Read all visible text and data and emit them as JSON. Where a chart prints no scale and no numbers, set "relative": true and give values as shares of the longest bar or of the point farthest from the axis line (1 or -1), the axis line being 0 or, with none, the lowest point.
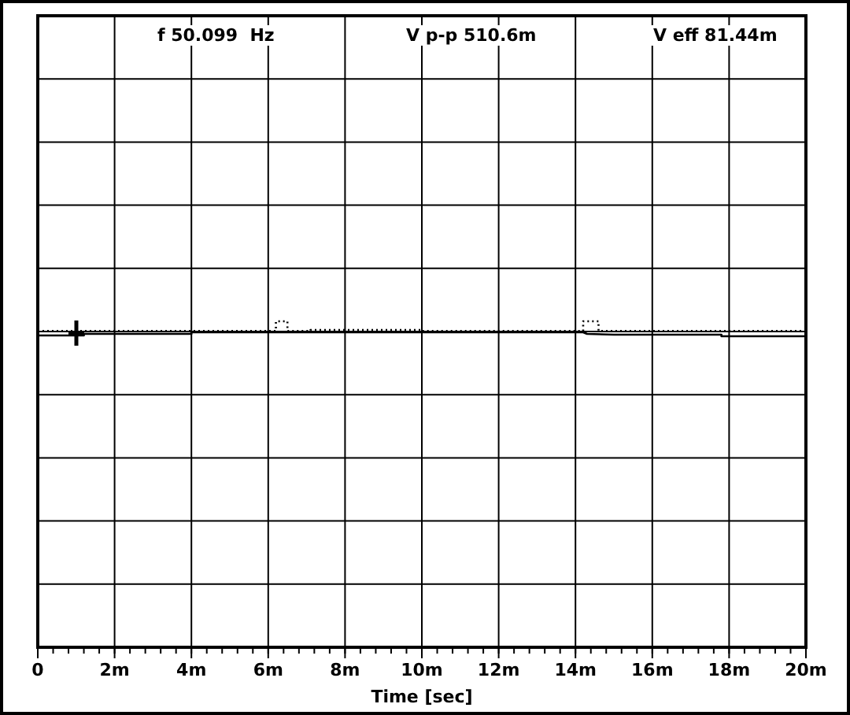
{
  "chart_data": {
    "type": "line",
    "relative": true,
    "xlabel": "Time [sec]",
    "grid": true,
    "marker": "none",
    "annotations": [
      "f 50.099  Hz",
      "V p-p 510.6m",
      "V eff 81.44m"
    ],
    "xlim": [
      0,
      20
    ],
    "xticks": [
      0,
      {
        "value": 2,
        "label": "2m"
      },
      {
        "value": 4,
        "label": "4m"
      },
      {
        "value": 6,
        "label": "6m"
      },
      {
        "value": 8,
        "label": "8m"
      },
      {
        "value": 10,
        "label": "10m"
      },
      {
        "value": 12,
        "label": "12m"
      },
      {
        "value": 14,
        "label": "14m"
      },
      {
        "value": 16,
        "label": "16m"
      },
      {
        "value": 18,
        "label": "18m"
      },
      {
        "value": 20,
        "label": "20m"
      }
    ],
    "series": [
      {
        "color": "#000000",
        "line_style": "dotted",
        "x": [
          0,
          6.2,
          6.2,
          6.5,
          6.5,
          7.1,
          7.1,
          10,
          10,
          14.2,
          14.2,
          14.6,
          14.6,
          20
        ],
        "values": [
          0.05,
          0.05,
          1,
          1,
          0.05,
          0.05,
          0.15,
          0.15,
          0.05,
          0.05,
          1,
          1,
          0.05,
          0.05
        ]
      },
      {
        "color": "#000000",
        "line_style": "solid",
        "x": [
          0,
          1.2,
          1.2,
          4,
          4,
          14.2,
          14.3,
          15,
          17.8,
          17.8,
          20
        ],
        "values": [
          -0.38,
          -0.38,
          -0.23,
          -0.23,
          -0.08,
          -0.08,
          -0.23,
          -0.31,
          -0.31,
          -0.46,
          -0.46
        ]
      }
    ]
  }
}
